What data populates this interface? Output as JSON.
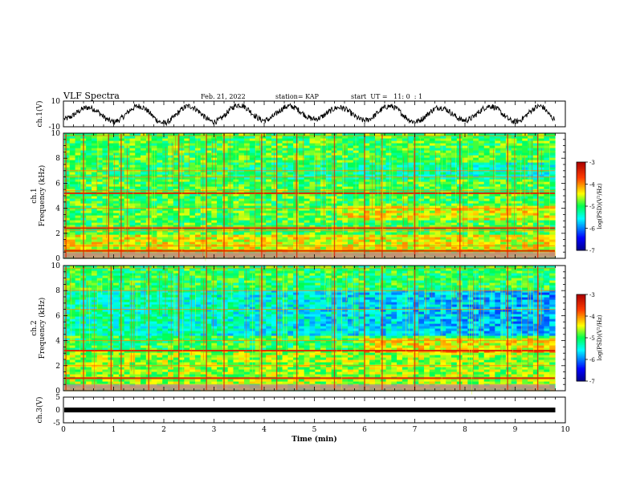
{
  "header": {
    "title": "VLF Spectra",
    "date": "Feb. 21, 2022",
    "station": "station= KAP",
    "start": "start  UT =   11: 0  : 1"
  },
  "chart_data": [
    {
      "type": "line",
      "name": "ch.1 waveform",
      "ylabel": "ch.1(V)",
      "ylim": [
        -10,
        10
      ],
      "yticks": [
        "10",
        "-10"
      ],
      "xlim": [
        0,
        10
      ],
      "note_x": [
        0,
        0.5,
        1,
        1.5,
        2,
        2.5,
        3,
        3.5,
        4,
        4.5,
        5,
        5.5,
        6,
        6.5,
        7,
        7.5,
        8,
        8.5,
        9,
        9.5,
        9.8
      ],
      "y": [
        -4,
        5,
        -6,
        6,
        -7,
        6,
        -6,
        7,
        -5,
        6,
        -4,
        5,
        -5,
        6,
        -6,
        5,
        -5,
        6,
        -6,
        6,
        -4
      ]
    },
    {
      "type": "heatmap",
      "name": "ch.1 spectrogram",
      "ylabel": "ch.1\nFrequency (kHz)",
      "ylim": [
        0,
        10
      ],
      "yticks": [
        "0",
        "2",
        "4",
        "6",
        "8",
        "10"
      ],
      "xlim": [
        0,
        9.8
      ],
      "colorbar": {
        "label": "log(PSD)(V²/Hz)",
        "ticks": [
          "-3",
          "-4",
          "-5",
          "-6",
          "-7"
        ],
        "range": [
          -7,
          -3
        ]
      },
      "bands_khz": [
        0.3,
        0.6,
        1.0,
        2.2,
        2.5,
        4.0,
        5.2,
        5.4,
        6.5,
        7.0,
        9.8
      ],
      "strong_bands_khz": [
        5.2,
        2.4,
        0.6
      ],
      "bursts_min": [
        0.05,
        0.4,
        0.9,
        1.15,
        1.7,
        2.3,
        2.85,
        3.2,
        3.95,
        4.25,
        4.65,
        5.4,
        6.0,
        6.35,
        7.0,
        7.9,
        8.85,
        9.45
      ]
    },
    {
      "type": "heatmap",
      "name": "ch.2 spectrogram",
      "ylabel": "ch.2\nFrequency (kHz)",
      "ylim": [
        0,
        10
      ],
      "yticks": [
        "0",
        "2",
        "4",
        "6",
        "8",
        "10"
      ],
      "xlim": [
        0,
        9.8
      ],
      "colorbar": {
        "label": "log(PSD)(V²/Hz)",
        "ticks": [
          "-3",
          "-4",
          "-5",
          "-6",
          "-7"
        ],
        "range": [
          -7,
          -3
        ]
      },
      "bands_khz": [
        0.3,
        1.0,
        2.0,
        3.2,
        4.0,
        6.5,
        8.0,
        9.8
      ],
      "strong_bands_khz": [
        3.2,
        1.0
      ],
      "bursts_min": [
        0.05,
        0.4,
        0.95,
        1.15,
        1.7,
        2.3,
        2.85,
        3.2,
        3.95,
        4.25,
        4.65,
        5.4,
        6.0,
        6.35,
        7.0,
        7.9,
        8.85,
        9.45
      ]
    },
    {
      "type": "line",
      "name": "ch.3 level",
      "ylabel": "ch.3(V)",
      "ylim": [
        -5,
        5
      ],
      "yticks": [
        "5",
        "0",
        "-5"
      ],
      "xlim": [
        0,
        10
      ],
      "xlabel": "Time (min)",
      "xticks": [
        "0",
        "1",
        "2",
        "3",
        "4",
        "5",
        "6",
        "7",
        "8",
        "9",
        "10"
      ],
      "x": [
        0,
        9.8
      ],
      "y": [
        0,
        0
      ]
    }
  ]
}
